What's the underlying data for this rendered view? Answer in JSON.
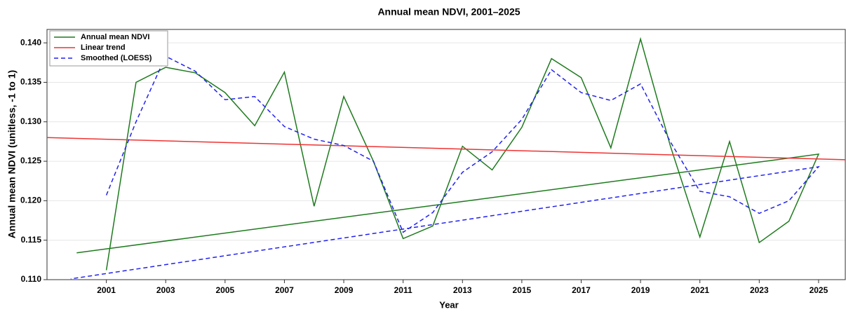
{
  "chart_data": {
    "type": "line",
    "title": "Annual mean NDVI, 2001–2025",
    "x_label": "Year",
    "y_label": "Annual mean NDVI (unitless, -1 to 1)",
    "xlim": [
      1999,
      2025.9
    ],
    "ylim": [
      0.11,
      0.1417
    ],
    "xticks": [
      2001,
      2003,
      2005,
      2007,
      2009,
      2011,
      2013,
      2015,
      2017,
      2019,
      2021,
      2023,
      2025
    ],
    "yticks": [
      {
        "value": 0.11,
        "label": "0.110"
      },
      0.115,
      {
        "value": 0.12,
        "label": "0.120"
      },
      0.125,
      {
        "value": 0.13,
        "label": "0.130"
      },
      0.135,
      {
        "value": 0.14,
        "label": "0.140"
      }
    ],
    "grid": true,
    "legend": "upper left",
    "series": [
      {
        "name": "Annual mean NDVI",
        "color": "#1e7a1e",
        "dash": false,
        "x": [
          2001,
          2002,
          2003,
          2004,
          2005,
          2006,
          2007,
          2008,
          2009,
          2010,
          2011,
          2012,
          2013,
          2014,
          2015,
          2016,
          2017,
          2018,
          2019,
          2020,
          2021,
          2022,
          2023,
          2024,
          2025,
          2000
        ],
        "values": [
          0.1112,
          0.135,
          0.1369,
          0.1362,
          0.1337,
          0.1295,
          0.1363,
          0.1193,
          0.1332,
          0.125,
          0.1152,
          0.1168,
          0.1269,
          0.1239,
          0.1293,
          0.138,
          0.1356,
          0.1267,
          0.1405,
          0.127,
          0.1154,
          0.1275,
          0.1147,
          0.1174,
          0.1259,
          0.1134
        ]
      },
      {
        "name": "Linear trend",
        "color": "#ee3333",
        "dash": false,
        "x": [
          1999,
          2025.9
        ],
        "values": [
          0.128,
          0.1252
        ]
      },
      {
        "name": "Smoothed (LOESS)",
        "color": "#2222ee",
        "dash": true,
        "x": [
          2001,
          2002,
          2003,
          2004,
          2005,
          2006,
          2007,
          2008,
          2009,
          2010,
          2011,
          2012,
          2013,
          2014,
          2015,
          2016,
          2017,
          2018,
          2019,
          2020,
          2021,
          2022,
          2023,
          2024,
          2025,
          1999.8
        ],
        "values": [
          0.1207,
          0.13,
          0.1383,
          0.1364,
          0.1328,
          0.1332,
          0.1294,
          0.1278,
          0.127,
          0.125,
          0.116,
          0.1185,
          0.1236,
          0.1262,
          0.1303,
          0.1366,
          0.1337,
          0.1327,
          0.1348,
          0.1275,
          0.1212,
          0.1205,
          0.1184,
          0.12,
          0.1243,
          0.1101
        ]
      }
    ]
  }
}
